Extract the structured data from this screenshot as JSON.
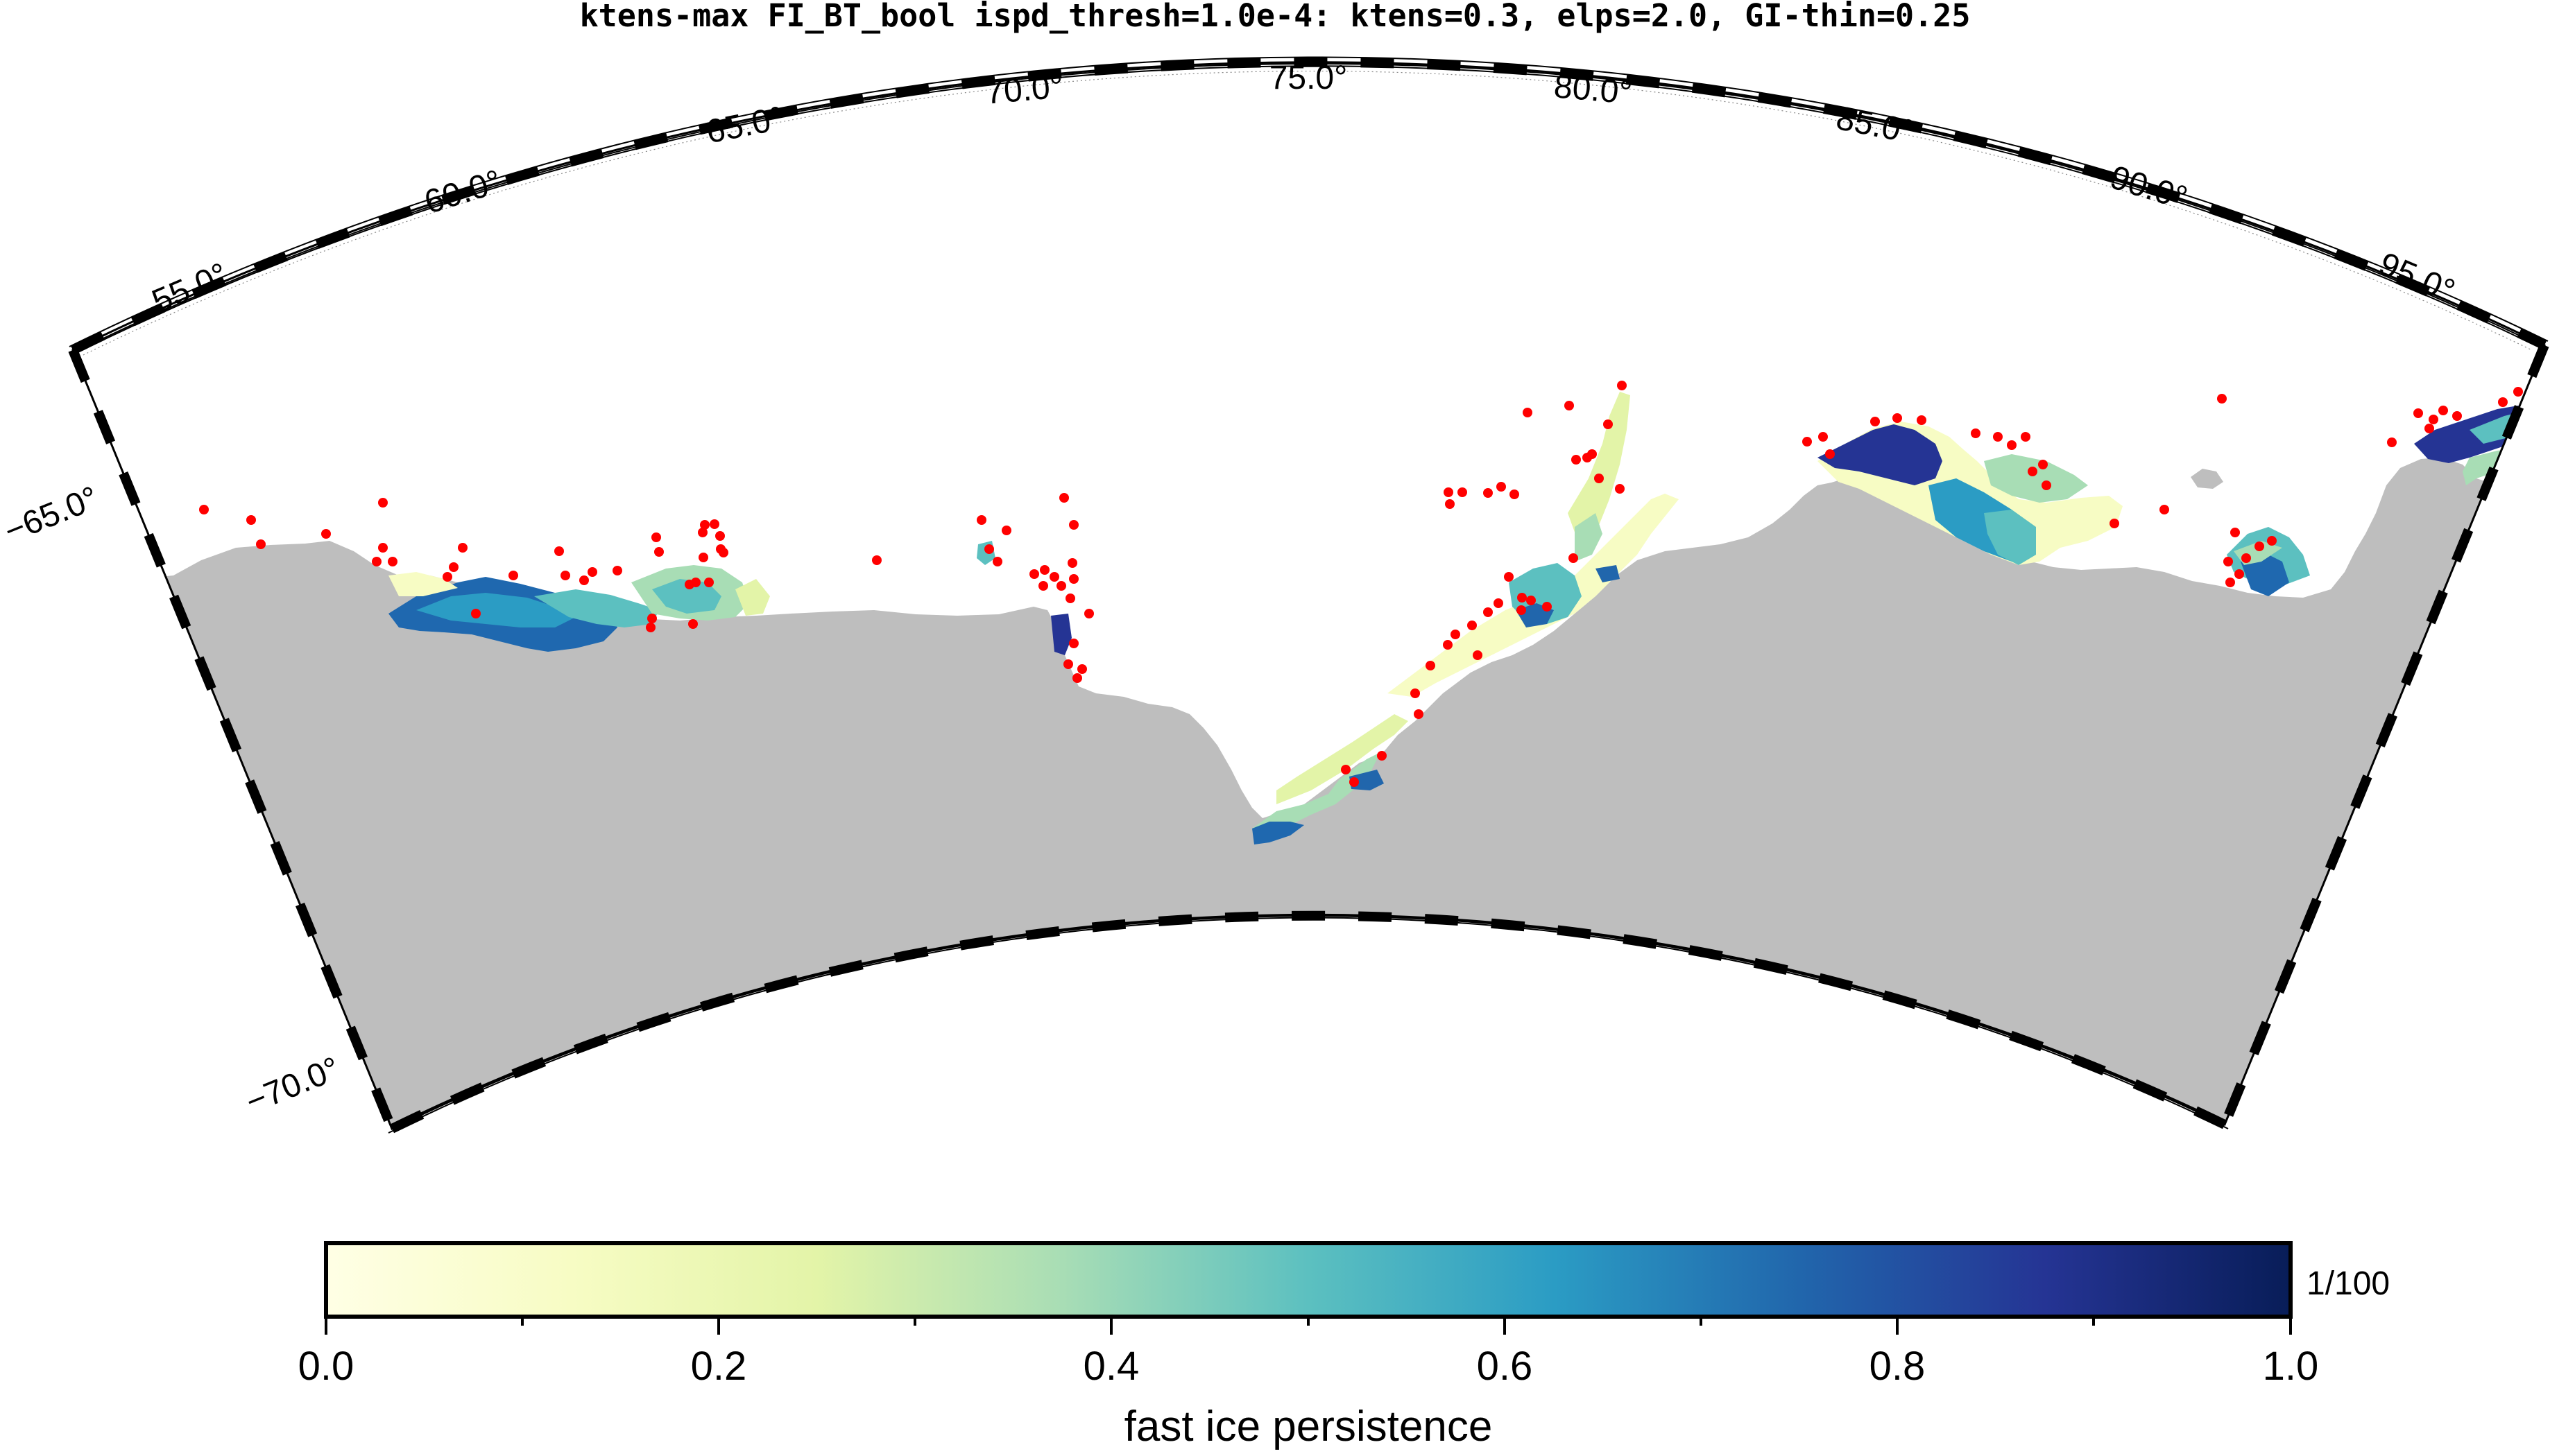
{
  "title": "ktens-max FI_BT_bool ispd_thresh=1.0e-4: ktens=0.3, elps=2.0, GI-thin=0.25",
  "map": {
    "lon_labels": [
      "55.0°",
      "60.0°",
      "65.0°",
      "70.0°",
      "75.0°",
      "80.0°",
      "85.0°",
      "90.0°",
      "95.0°"
    ],
    "lon_values": [
      55,
      60,
      65,
      70,
      75,
      80,
      85,
      90,
      95
    ],
    "lat_labels": [
      "−65.0°",
      "−70.0°"
    ],
    "lat_values": [
      -65,
      -70
    ],
    "lon_range": [
      52,
      98
    ],
    "lat_range": [
      -71,
      -63.5
    ],
    "land_color": "#bebebe",
    "grounded_iceberg_color": "#ff0000"
  },
  "colorbar": {
    "label": "fast ice persistence",
    "ticks": [
      "0.0",
      "0.2",
      "0.4",
      "0.6",
      "0.8",
      "1.0"
    ],
    "tick_values": [
      0,
      0.2,
      0.4,
      0.6,
      0.8,
      1.0
    ],
    "range": [
      0,
      1
    ],
    "scale_note": "1/100",
    "colormap": [
      "#ffffe5",
      "#f0f9c0",
      "#d9f0a3",
      "#a8ddb5",
      "#67c4c0",
      "#2b9cc4",
      "#1f68af",
      "#253494",
      "#081d58"
    ]
  }
}
